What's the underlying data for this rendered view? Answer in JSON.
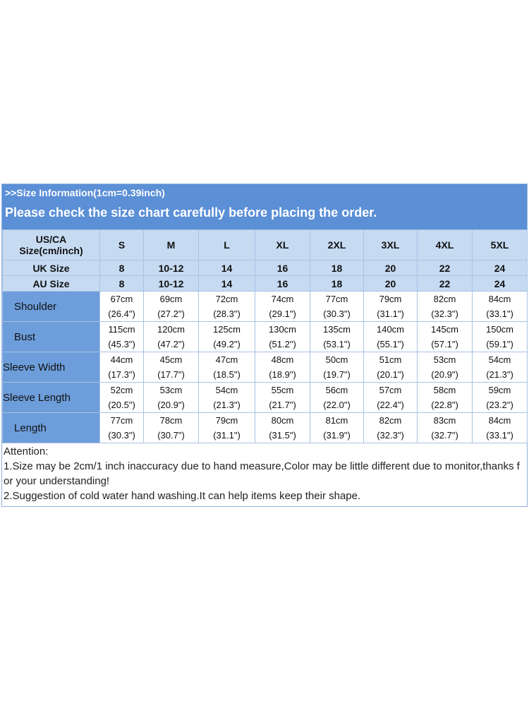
{
  "header": {
    "title": ">>Size Information(1cm=0.39inch)",
    "subtitle": "Please check the size chart carefully before placing the order."
  },
  "table": {
    "head": {
      "label": [
        "US/CA",
        "Size(cm/inch)"
      ],
      "sizes": [
        "S",
        "M",
        "L",
        "XL",
        "2XL",
        "3XL",
        "4XL",
        "5XL"
      ]
    },
    "size_rows": [
      {
        "label": "UK Size",
        "values": [
          "8",
          "10-12",
          "14",
          "16",
          "18",
          "20",
          "22",
          "24"
        ]
      },
      {
        "label": "AU Size",
        "values": [
          "8",
          "10-12",
          "14",
          "16",
          "18",
          "20",
          "22",
          "24"
        ]
      }
    ],
    "measure_rows": [
      {
        "label": "Shoulder",
        "cells": [
          [
            "67cm",
            "(26.4\")"
          ],
          [
            "69cm",
            "(27.2\")"
          ],
          [
            "72cm",
            "(28.3\")"
          ],
          [
            "74cm",
            "(29.1\")"
          ],
          [
            "77cm",
            "(30.3\")"
          ],
          [
            "79cm",
            "(31.1\")"
          ],
          [
            "82cm",
            "(32.3\")"
          ],
          [
            "84cm",
            "(33.1\")"
          ]
        ]
      },
      {
        "label": "Bust",
        "cells": [
          [
            "115cm",
            "(45.3\")"
          ],
          [
            "120cm",
            "(47.2\")"
          ],
          [
            "125cm",
            "(49.2\")"
          ],
          [
            "130cm",
            "(51.2\")"
          ],
          [
            "135cm",
            "(53.1\")"
          ],
          [
            "140cm",
            "(55.1\")"
          ],
          [
            "145cm",
            "(57.1\")"
          ],
          [
            "150cm",
            "(59.1\")"
          ]
        ]
      },
      {
        "label": "Sleeve Width",
        "cells": [
          [
            "44cm",
            "(17.3\")"
          ],
          [
            "45cm",
            "(17.7\")"
          ],
          [
            "47cm",
            "(18.5\")"
          ],
          [
            "48cm",
            "(18.9\")"
          ],
          [
            "50cm",
            "(19.7\")"
          ],
          [
            "51cm",
            "(20.1\")"
          ],
          [
            "53cm",
            "(20.9\")"
          ],
          [
            "54cm",
            "(21.3\")"
          ]
        ]
      },
      {
        "label": "Sleeve Length",
        "cells": [
          [
            "52cm",
            "(20.5\")"
          ],
          [
            "53cm",
            "(20.9\")"
          ],
          [
            "54cm",
            "(21.3\")"
          ],
          [
            "55cm",
            "(21.7\")"
          ],
          [
            "56cm",
            "(22.0\")"
          ],
          [
            "57cm",
            "(22.4\")"
          ],
          [
            "58cm",
            "(22.8\")"
          ],
          [
            "59cm",
            "(23.2\")"
          ]
        ]
      },
      {
        "label": "Length",
        "cells": [
          [
            "77cm",
            "(30.3\")"
          ],
          [
            "78cm",
            "(30.7\")"
          ],
          [
            "79cm",
            "(31.1\")"
          ],
          [
            "80cm",
            "(31.5\")"
          ],
          [
            "81cm",
            "(31.9\")"
          ],
          [
            "82cm",
            "(32.3\")"
          ],
          [
            "83cm",
            "(32.7\")"
          ],
          [
            "84cm",
            "(33.1\")"
          ]
        ]
      }
    ]
  },
  "notes": [
    "Attention:",
    "1.Size may be 2cm/1 inch inaccuracy due to hand measure,Color may be little different due to monitor,thanks for your understanding!",
    "2.Suggestion of cold water hand washing.It can help items keep their shape."
  ]
}
